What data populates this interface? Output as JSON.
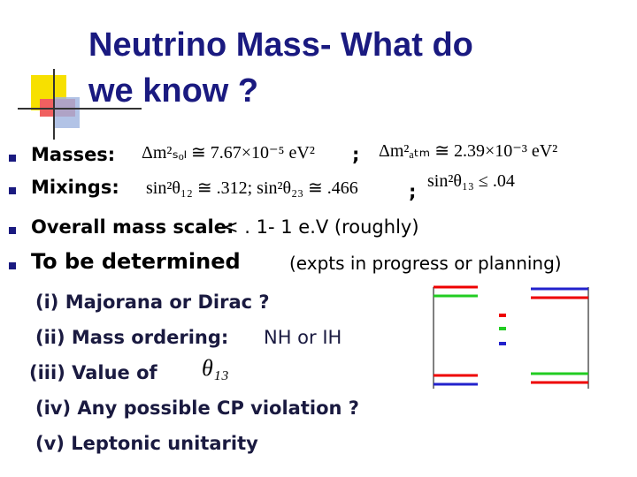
{
  "title": {
    "lines": [
      "Neutrino Mass- What do",
      "we know ?"
    ]
  },
  "bullets": [
    {
      "label": "Masses:",
      "formula_1": "Δm²ₛₒₗ ≅ 7.67×10⁻⁵ eV²",
      "separator": ";",
      "formula_2": "Δm²ₐₜₘ ≅ 2.39×10⁻³ eV²"
    },
    {
      "label": "Mixings:",
      "formula_1": "sin²θ₁₂ ≅ .312; sin²θ₂₃ ≅ .466",
      "separator": ";",
      "formula_2": "sin²θ₁₃ ≤ .04"
    },
    {
      "label": "Overall mass scale:",
      "text": "< . 1- 1 e.V (roughly)"
    },
    {
      "label": "To be determined",
      "text": "(expts in progress or planning)"
    }
  ],
  "sub_items": [
    {
      "text": "(i)  Majorana or Dirac ?"
    },
    {
      "text": "(ii) Mass ordering:",
      "extra": "NH or IH"
    },
    {
      "text": "(iii) Value of",
      "extra": "θ₁₃"
    },
    {
      "text": "(iv) Any possible CP violation ?"
    },
    {
      "text": "(v) Leptonic unitarity"
    }
  ]
}
